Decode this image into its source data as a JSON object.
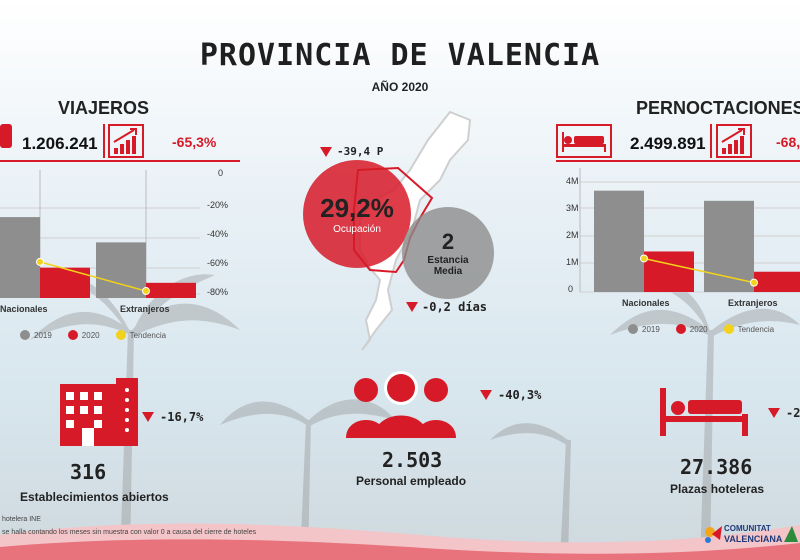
{
  "header": {
    "title": "PROVINCIA DE VALENCIA",
    "subtitle": "AÑO 2020"
  },
  "viajeros": {
    "title": "VIAJEROS",
    "total": "1.206.241",
    "change": "-65,3%",
    "chart_ticks": [
      "0",
      "-20%",
      "-40%",
      "-60%",
      "-80%"
    ],
    "categories": [
      "Nacionales",
      "Extranjeros"
    ],
    "legend": [
      "2019",
      "2020",
      "Tendencia"
    ]
  },
  "pernoctaciones": {
    "title": "PERNOCTACIONES",
    "total": "2.499.891",
    "change": "-68,",
    "chart_ticks": [
      "4M",
      "3M",
      "2M",
      "1M",
      "0"
    ],
    "categories": [
      "Nacionales",
      "Extranjeros"
    ],
    "legend": [
      "2019",
      "2020",
      "Tendencia"
    ]
  },
  "map": {
    "ocupacion_change": "-39,4 P",
    "ocupacion_value": "29,2%",
    "ocupacion_label": "Ocupación",
    "estancia_value": "2",
    "estancia_label_1": "Estancia",
    "estancia_label_2": "Media",
    "estancia_change": "-0,2 días"
  },
  "stats": {
    "establecimientos": {
      "value": "316",
      "label": "Establecimientos abiertos",
      "change": "-16,7%"
    },
    "personal": {
      "value": "2.503",
      "label": "Personal empleado",
      "change": "-40,3%"
    },
    "plazas": {
      "value": "27.386",
      "label": "Plazas hoteleras",
      "change": "-2"
    }
  },
  "footer": {
    "line1": "hotelera INE",
    "line2": "se halla contando los meses sin muestra  con valor 0 a causa del cierre de hoteles",
    "logo_1": "COMUNITAT",
    "logo_2": "VALENCIANA"
  },
  "colors": {
    "red": "#d71a28",
    "gray": "#8e8e8e",
    "yellow": "#f2d21b"
  },
  "chart_data": [
    {
      "type": "bar",
      "title": "VIAJEROS",
      "categories": [
        "Nacionales",
        "Extranjeros"
      ],
      "ylim": [
        0,
        3500000
      ],
      "series": [
        {
          "name": "2019",
          "values": [
            2400000,
            1650000
          ]
        },
        {
          "name": "2020",
          "values": [
            900000,
            450000
          ]
        }
      ],
      "trend": {
        "name": "Tendencia",
        "values": [
          -0.59,
          -0.8
        ]
      },
      "y2ticks": [
        "0",
        "-20%",
        "-40%",
        "-60%",
        "-80%"
      ]
    },
    {
      "type": "bar",
      "title": "PERNOCTACIONES",
      "categories": [
        "Nacionales",
        "Extranjeros"
      ],
      "ylim": [
        0,
        4500000
      ],
      "series": [
        {
          "name": "2019",
          "values": [
            4000000,
            3600000
          ]
        },
        {
          "name": "2020",
          "values": [
            1600000,
            800000
          ]
        }
      ],
      "trend": {
        "name": "Tendencia",
        "values": [
          -0.6,
          -0.78
        ]
      },
      "yticks": [
        "4M",
        "3M",
        "2M",
        "1M",
        "0"
      ]
    }
  ]
}
